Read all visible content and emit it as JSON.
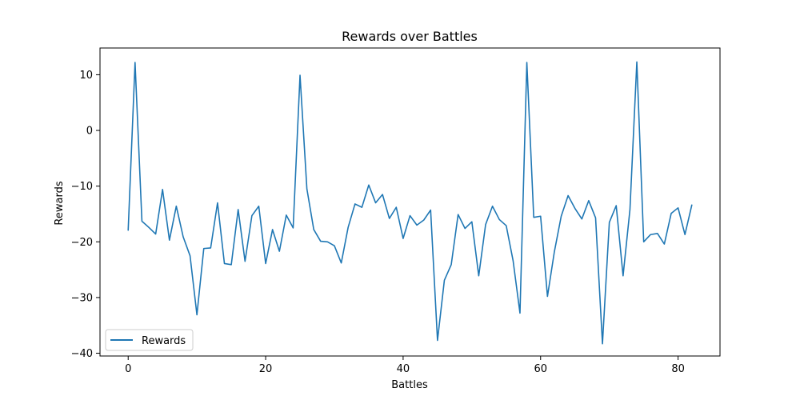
{
  "chart_data": {
    "type": "line",
    "title": "Rewards over Battles",
    "xlabel": "Battles",
    "ylabel": "Rewards",
    "xlim": [
      -4.1,
      86.1
    ],
    "ylim": [
      -40.5,
      14.8
    ],
    "xticks": [
      0,
      20,
      40,
      60,
      80
    ],
    "yticks": [
      -40,
      -30,
      -20,
      -10,
      0,
      10
    ],
    "grid": false,
    "legend_position": "lower-left",
    "series": [
      {
        "name": "Rewards",
        "color": "#1f77b4",
        "x": [
          0,
          1,
          2,
          3,
          4,
          5,
          6,
          7,
          8,
          9,
          10,
          11,
          12,
          13,
          14,
          15,
          16,
          17,
          18,
          19,
          20,
          21,
          22,
          23,
          24,
          25,
          26,
          27,
          28,
          29,
          30,
          31,
          32,
          33,
          34,
          35,
          36,
          37,
          38,
          39,
          40,
          41,
          42,
          43,
          44,
          45,
          46,
          47,
          48,
          49,
          50,
          51,
          52,
          53,
          54,
          55,
          56,
          57,
          58,
          59,
          60,
          61,
          62,
          63,
          64,
          65,
          66,
          67,
          68,
          69,
          70,
          71,
          72,
          73,
          74,
          75,
          76,
          77,
          78,
          79,
          80,
          81,
          82
        ],
        "y": [
          -17.9,
          12.2,
          -16.3,
          -17.4,
          -18.6,
          -10.6,
          -19.7,
          -13.6,
          -19.1,
          -22.5,
          -33.1,
          -21.2,
          -21.1,
          -13.0,
          -23.9,
          -24.1,
          -14.2,
          -23.5,
          -15.3,
          -13.6,
          -23.9,
          -17.8,
          -21.7,
          -15.2,
          -17.5,
          9.9,
          -10.5,
          -17.8,
          -19.9,
          -20.0,
          -20.7,
          -23.8,
          -17.4,
          -13.2,
          -13.8,
          -9.8,
          -13.0,
          -11.5,
          -15.8,
          -13.8,
          -19.4,
          -15.3,
          -17.0,
          -16.1,
          -14.3,
          -37.7,
          -26.9,
          -24.1,
          -15.1,
          -17.6,
          -16.4,
          -26.1,
          -16.9,
          -13.6,
          -16.0,
          -17.1,
          -23.4,
          -32.8,
          12.2,
          -15.6,
          -15.4,
          -29.8,
          -21.8,
          -15.4,
          -11.7,
          -14.0,
          -15.9,
          -12.6,
          -15.7,
          -38.3,
          -16.5,
          -13.5,
          -26.1,
          -14.2,
          12.3,
          -20.0,
          -18.7,
          -18.5,
          -20.4,
          -14.9,
          -13.9,
          -18.7,
          -13.4
        ]
      }
    ]
  }
}
